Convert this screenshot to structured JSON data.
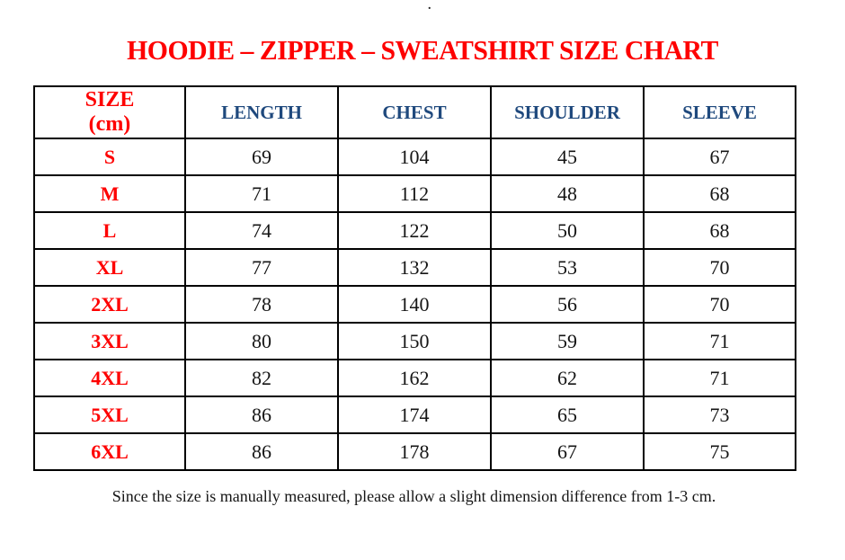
{
  "stray_mark": ".",
  "header_display": {
    "size_line1": "SIZE",
    "size_line2": "(cm)"
  },
  "colors": {
    "title_red": "#fe0000",
    "row_label_red": "#fe0000",
    "header_blue": "#1f497d",
    "value_text": "#151515",
    "table_border": "#000000",
    "background": "#ffffff"
  },
  "chart_data": {
    "type": "table",
    "title": "HOODIE – ZIPPER – SWEATSHIRT SIZE CHART",
    "unit": "cm",
    "columns": [
      "SIZE (cm)",
      "LENGTH",
      "CHEST",
      "SHOULDER",
      "SLEEVE"
    ],
    "rows": [
      [
        "S",
        69,
        104,
        45,
        67
      ],
      [
        "M",
        71,
        112,
        48,
        68
      ],
      [
        "L",
        74,
        122,
        50,
        68
      ],
      [
        "XL",
        77,
        132,
        53,
        70
      ],
      [
        "2XL",
        78,
        140,
        56,
        70
      ],
      [
        "3XL",
        80,
        150,
        59,
        71
      ],
      [
        "4XL",
        82,
        162,
        62,
        71
      ],
      [
        "5XL",
        86,
        174,
        65,
        73
      ],
      [
        "6XL",
        86,
        178,
        67,
        75
      ]
    ],
    "footnote": "Since the size is manually measured, please allow a slight dimension difference from 1-3 cm."
  }
}
